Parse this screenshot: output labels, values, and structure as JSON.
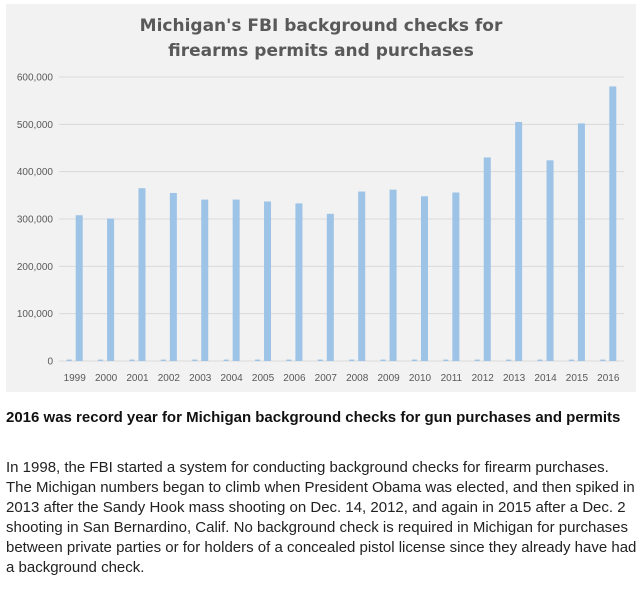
{
  "chart_data": {
    "type": "bar",
    "title": "Michigan's FBI background checks for\nfirearms permits and purchases",
    "categories": [
      "1999",
      "2000",
      "2001",
      "2002",
      "2003",
      "2004",
      "2005",
      "2006",
      "2007",
      "2008",
      "2009",
      "2010",
      "2011",
      "2012",
      "2013",
      "2014",
      "2015",
      "2016"
    ],
    "series": [
      {
        "values": [
          3000,
          3000,
          3000,
          3000,
          3000,
          3000,
          3000,
          3000,
          3000,
          3000,
          3000,
          3000,
          3000,
          3000,
          3000,
          3000,
          3000,
          3000
        ]
      },
      {
        "values": [
          308000,
          301000,
          365000,
          355000,
          341000,
          341000,
          337000,
          333000,
          311000,
          358000,
          362000,
          348000,
          356000,
          430000,
          505000,
          424000,
          502000,
          580000
        ]
      }
    ],
    "ylim": [
      0,
      600000
    ],
    "yticks": [
      0,
      100000,
      200000,
      300000,
      400000,
      500000,
      600000
    ],
    "ytick_labels": [
      "0",
      "100,000",
      "200,000",
      "300,000",
      "400,000",
      "500,000",
      "600,000"
    ],
    "grid": true,
    "colors": {
      "bar": "#9dc3e6",
      "grid": "#d9d9d9",
      "axis_text": "#595959",
      "background": "#f2f2f2"
    }
  },
  "article": {
    "headline": "2016 was record year for Michigan background checks for gun purchases and permits",
    "body": "In 1998, the FBI started a system for conducting background checks for firearm purchases. The Michigan numbers began to climb when President Obama was elected, and then spiked in 2013 after the Sandy Hook mass shooting on Dec. 14, 2012, and again in 2015 after a Dec. 2 shooting in San Bernardino, Calif. No background check is required in Michigan for purchases between private parties or for holders of a concealed pistol license since they already have had a background check."
  }
}
